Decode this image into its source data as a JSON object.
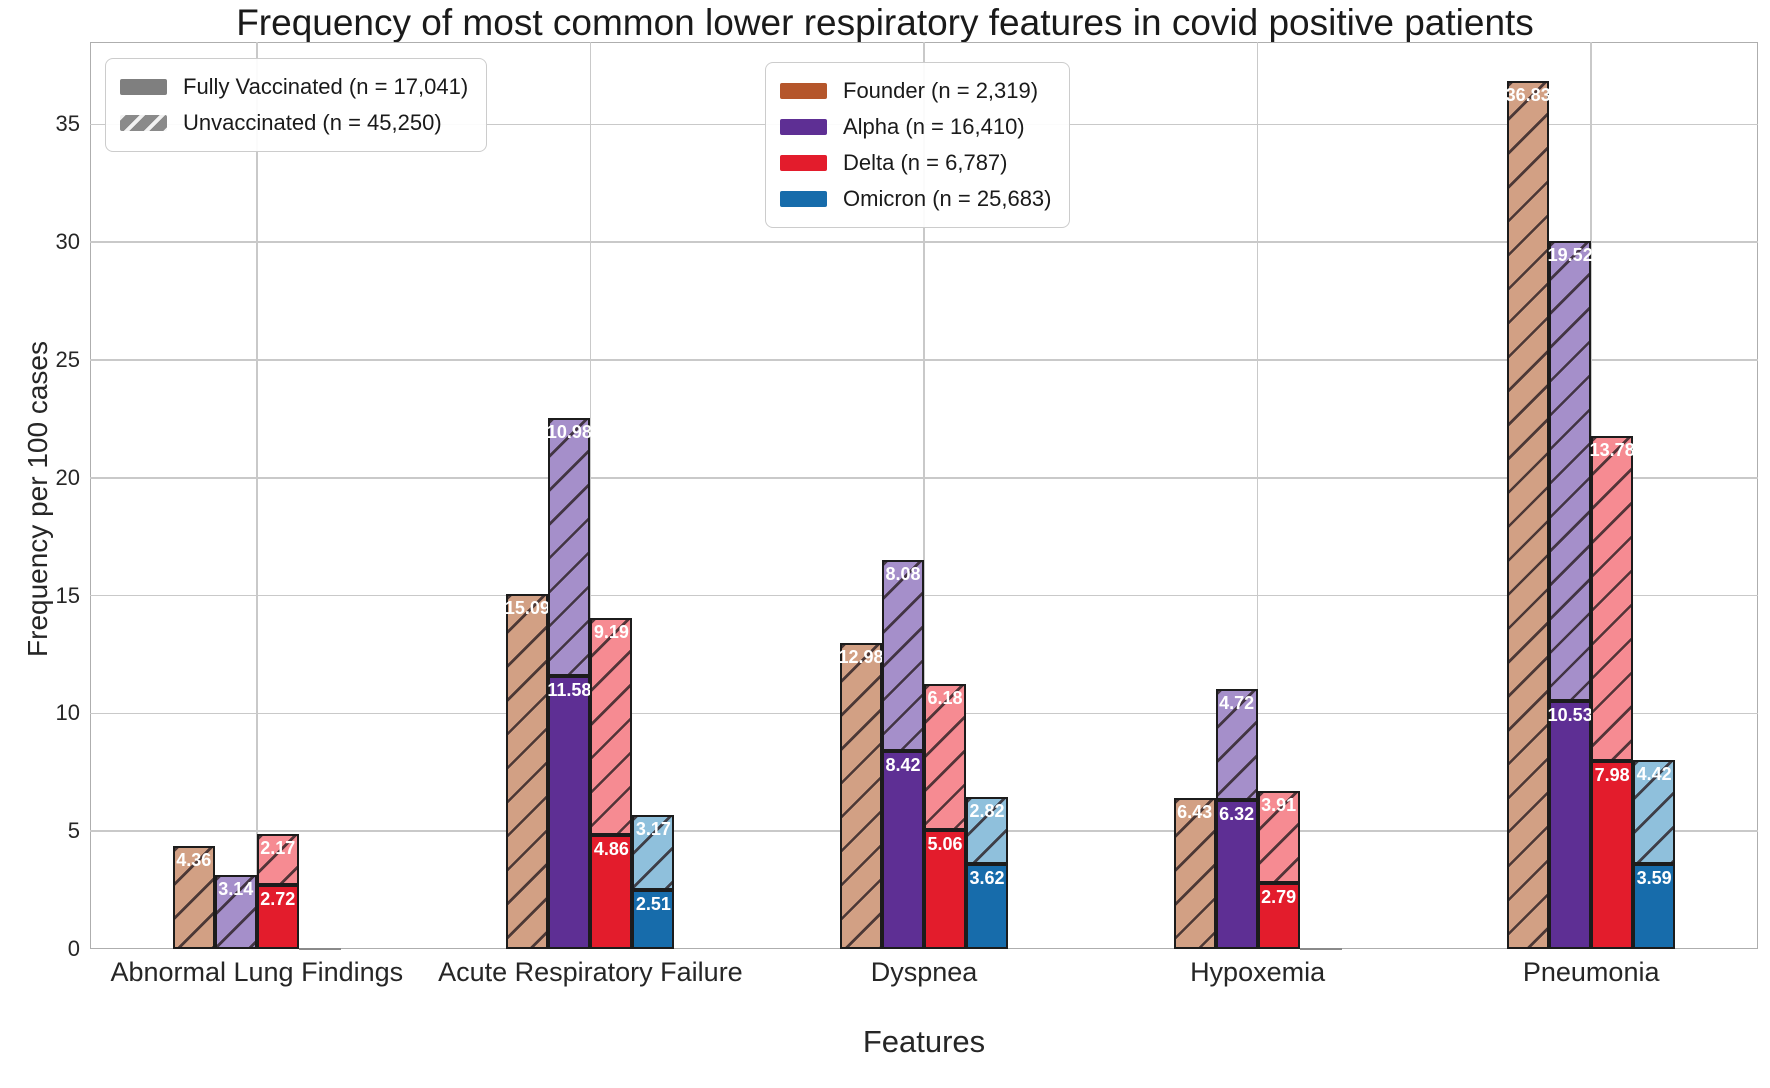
{
  "chart_data": {
    "type": "bar",
    "title": "Frequency of most common lower respiratory features in covid positive patients",
    "xlabel": "Features",
    "ylabel": "Frequency per 100 cases",
    "ylim": [
      0,
      38.5
    ],
    "yticks": [
      0,
      5,
      10,
      15,
      20,
      25,
      30,
      35
    ],
    "grid": true,
    "legend_note": "stacked bars: solid = Fully Vaccinated (bottom), hatched = Unvaccinated (top)",
    "categories": [
      "Abnormal Lung Findings",
      "Acute Respiratory Failure",
      "Dyspnea",
      "Hypoxemia",
      "Pneumonia"
    ],
    "vaccination_legend": [
      {
        "label": "Fully Vaccinated (n = 17,041)",
        "style": "solid",
        "color": "#7f7f7f"
      },
      {
        "label": "Unvaccinated (n = 45,250)",
        "style": "hatched",
        "color": "#8a8a8a"
      }
    ],
    "variants": [
      {
        "name": "Founder (n = 2,319)",
        "solid_color": "#b5562b",
        "light_color": "#d2a084",
        "vaccinated": [
          0,
          0,
          0,
          0,
          0
        ],
        "unvaccinated": [
          4.36,
          15.09,
          12.98,
          6.43,
          36.83
        ]
      },
      {
        "name": "Alpha (n = 16,410)",
        "solid_color": "#5e2f94",
        "light_color": "#a58fca",
        "vaccinated": [
          0,
          11.58,
          8.42,
          6.32,
          10.53
        ],
        "unvaccinated": [
          3.14,
          10.98,
          8.08,
          4.72,
          19.52
        ]
      },
      {
        "name": "Delta (n = 6,787)",
        "solid_color": "#e31c2c",
        "light_color": "#f68b92",
        "vaccinated": [
          2.72,
          4.86,
          5.06,
          2.79,
          7.98
        ],
        "unvaccinated": [
          2.17,
          9.19,
          6.18,
          3.91,
          13.78
        ]
      },
      {
        "name": "Omicron (n = 25,683)",
        "solid_color": "#176cab",
        "light_color": "#8fc0dc",
        "vaccinated": [
          0,
          2.51,
          3.62,
          0,
          3.59
        ],
        "unvaccinated": [
          0.05,
          3.17,
          2.82,
          0.05,
          4.42
        ]
      }
    ]
  }
}
